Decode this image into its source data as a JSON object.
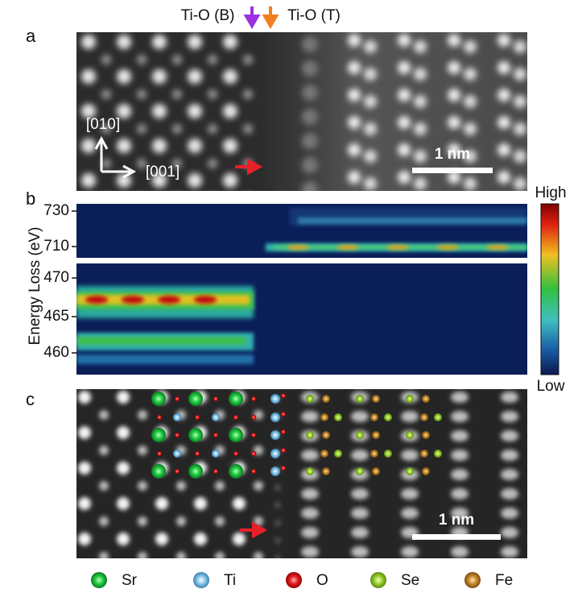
{
  "header": {
    "marker_bottom": "Ti-O (B)",
    "marker_top": "Ti-O (T)"
  },
  "panel_a": {
    "label": "a",
    "axis_vertical": "[010]",
    "axis_horizontal": "[001]",
    "scale_bar": "1 nm"
  },
  "panel_b": {
    "label": "b",
    "y_axis_label": "Energy Loss (eV)",
    "upper_ticks": [
      "730",
      "710"
    ],
    "lower_ticks": [
      "470",
      "465",
      "460"
    ],
    "colorbar_high": "High",
    "colorbar_low": "Low"
  },
  "panel_c": {
    "label": "c",
    "scale_bar": "1 nm"
  },
  "legend": [
    "Sr",
    "Ti",
    "O",
    "Se",
    "Fe"
  ]
}
